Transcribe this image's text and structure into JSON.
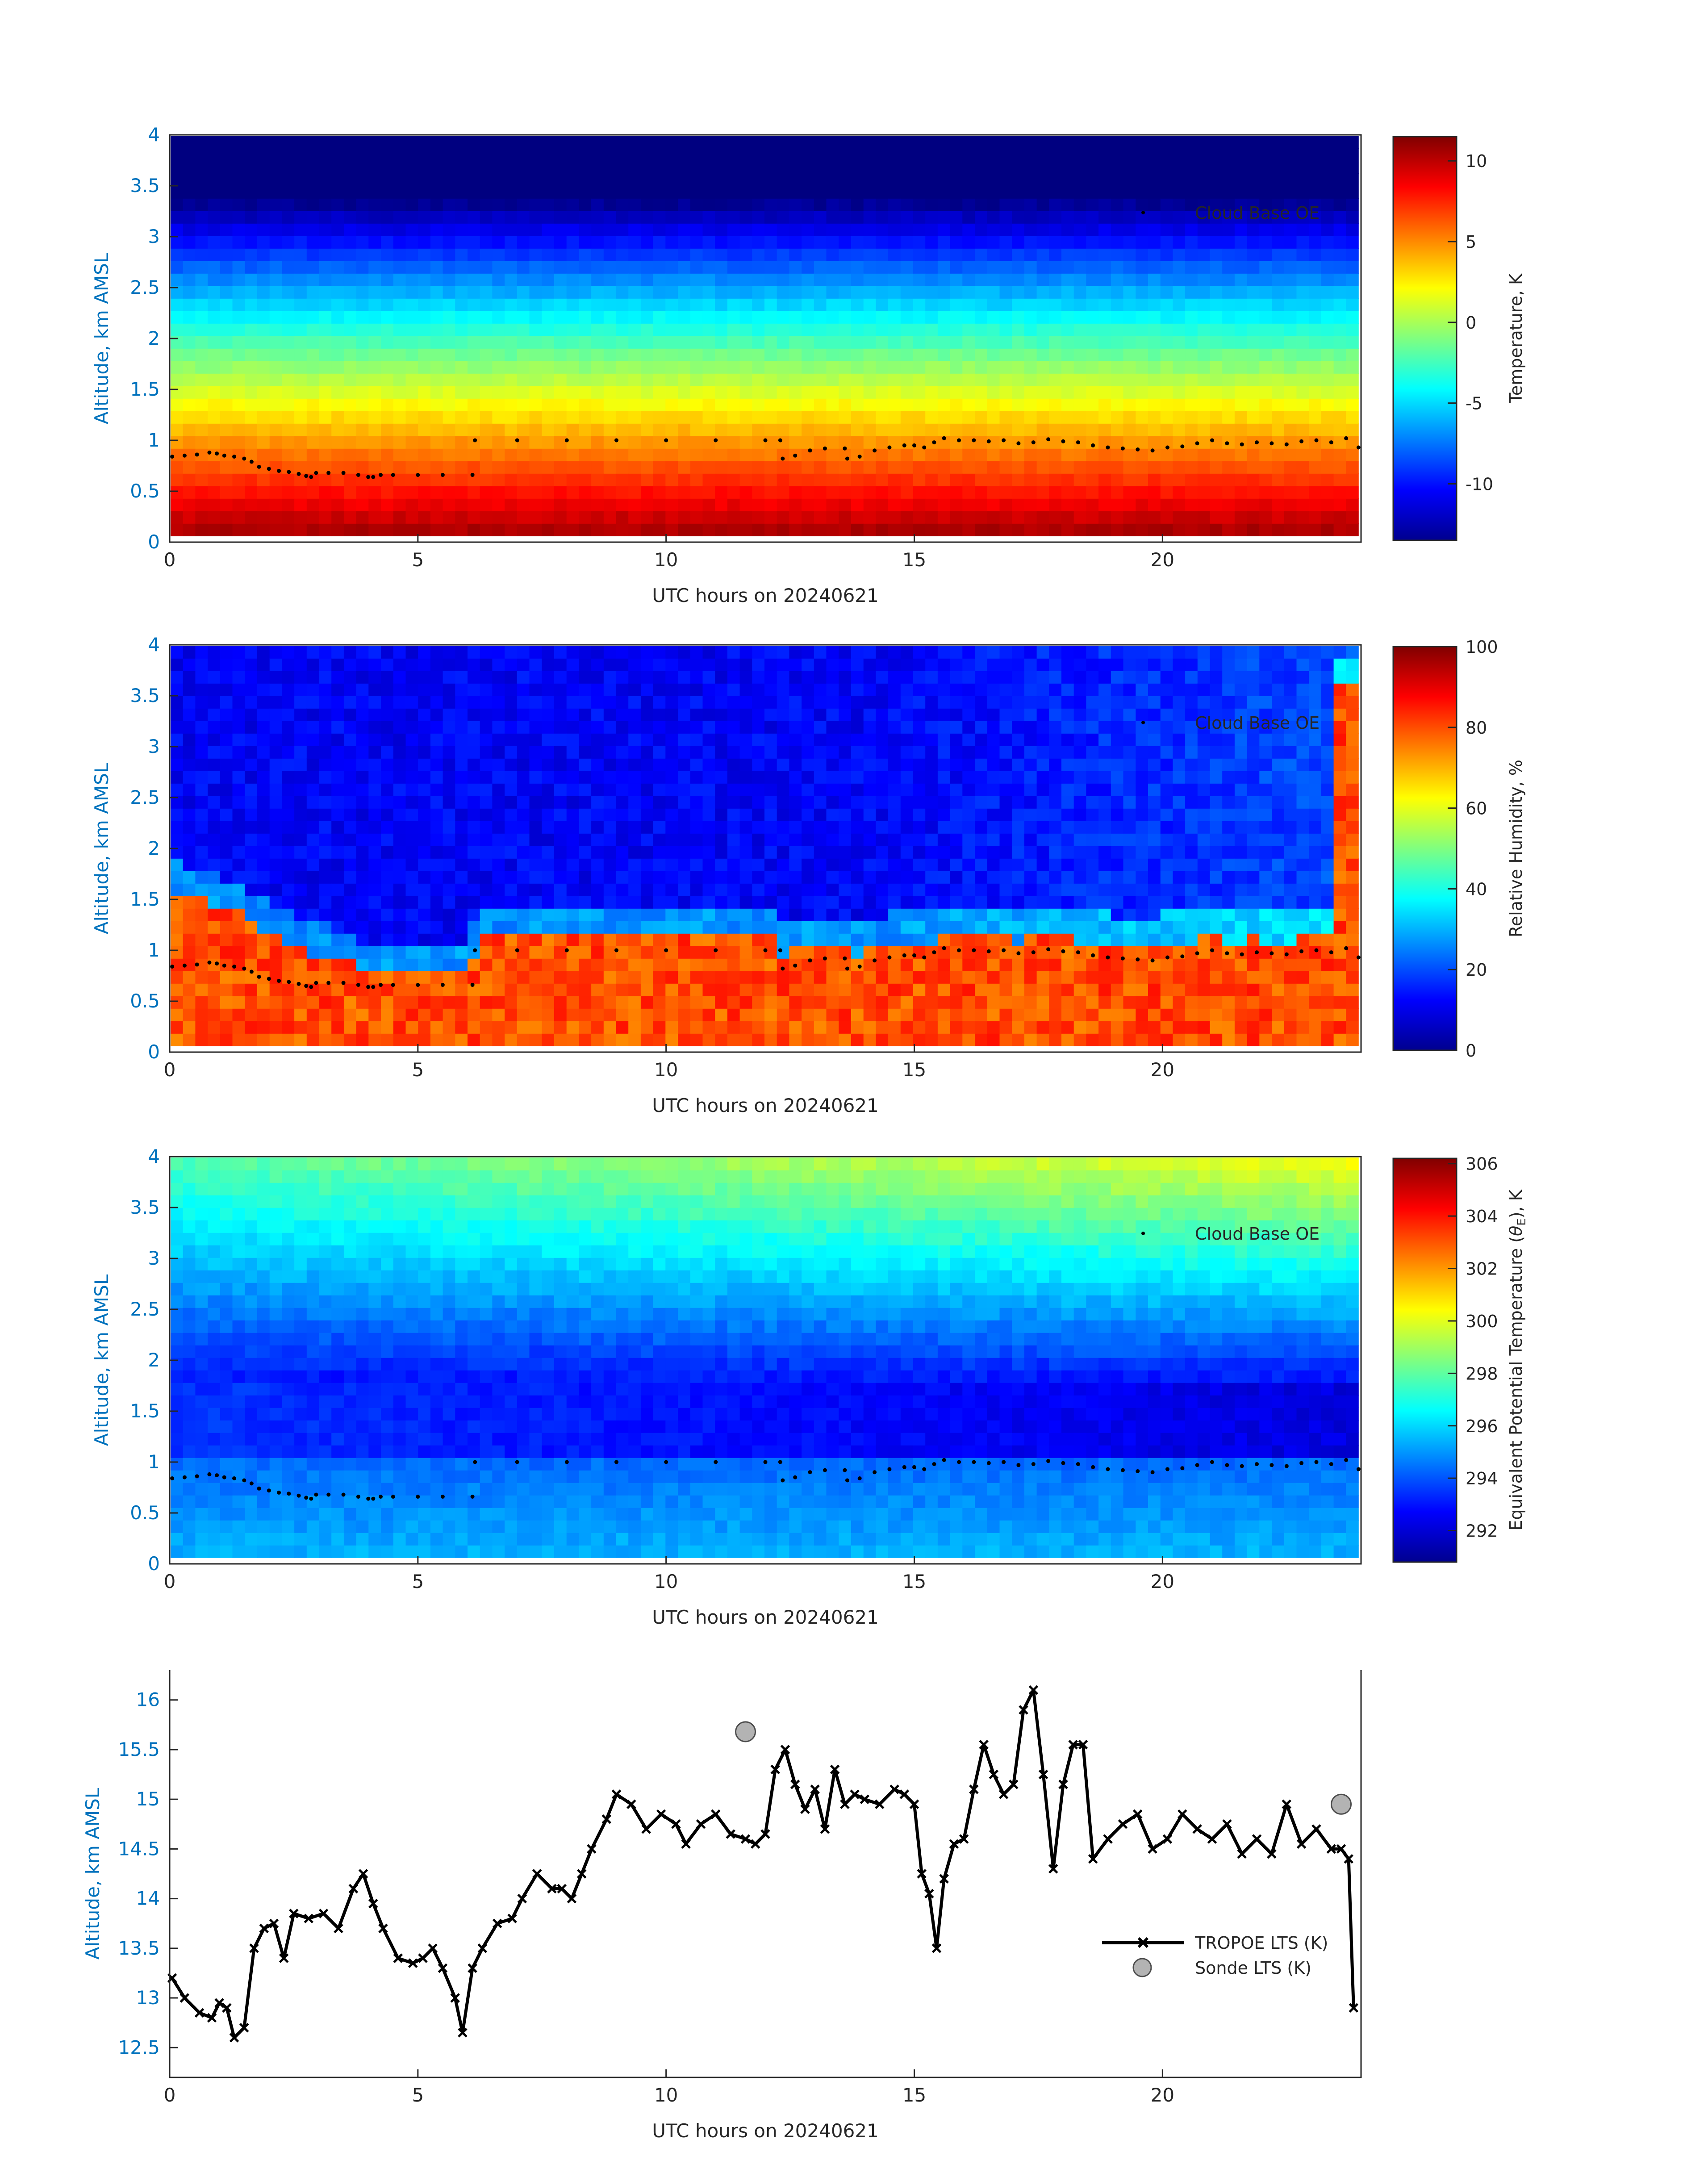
{
  "figure": {
    "date_label": "UTC hours on 20240621"
  },
  "colors": {
    "axis_blue": "#0072BD",
    "cloud_marker": "#000000",
    "sonde_fill": "#B3B3B3",
    "sonde_edge": "#4D4D4D",
    "line": "#000000"
  },
  "chart_data": [
    {
      "type": "heatmap",
      "title": "",
      "xlabel": "UTC hours on 20240621",
      "ylabel": "Altitude, km AMSL",
      "xlim": [
        0,
        24
      ],
      "ylim": [
        0,
        4
      ],
      "xticks": [
        0,
        5,
        10,
        15,
        20
      ],
      "yticks": [
        0,
        0.5,
        1,
        1.5,
        2,
        2.5,
        3,
        3.5,
        4
      ],
      "colorbar": {
        "label": "Temperature, K",
        "range": [
          -13.5,
          11.5
        ],
        "ticks": [
          -10,
          -5,
          0,
          5,
          10
        ],
        "colormap": "jet"
      },
      "field": {
        "description": "temperature decreasing with altitude",
        "surface_value": 11,
        "top_value": -13
      },
      "legend": [
        "Cloud Base OE"
      ],
      "legend_location": "top-right"
    },
    {
      "type": "heatmap",
      "title": "",
      "xlabel": "UTC hours on 20240621",
      "ylabel": "Altitude, km AMSL",
      "xlim": [
        0,
        24
      ],
      "ylim": [
        0,
        4
      ],
      "xticks": [
        0,
        5,
        10,
        15,
        20
      ],
      "yticks": [
        0,
        0.5,
        1,
        1.5,
        2,
        2.5,
        3,
        3.5,
        4
      ],
      "colorbar": {
        "label": "Relative Humidity, %",
        "range": [
          0,
          100
        ],
        "ticks": [
          0,
          20,
          40,
          60,
          80,
          100
        ],
        "colormap": "jet"
      },
      "field": {
        "description": "moist boundary layer below cloud base, dry free troposphere above",
        "boundary_layer_value": 82,
        "free_troposphere_value": 12
      },
      "legend": [
        "Cloud Base OE"
      ],
      "legend_location": "top-right"
    },
    {
      "type": "heatmap",
      "title": "",
      "xlabel": "UTC hours on 20240621",
      "ylabel": "Altitude, km AMSL",
      "xlim": [
        0,
        24
      ],
      "ylim": [
        0,
        4
      ],
      "xticks": [
        0,
        5,
        10,
        15,
        20
      ],
      "yticks": [
        0,
        0.5,
        1,
        1.5,
        2,
        2.5,
        3,
        3.5,
        4
      ],
      "colorbar": {
        "label": "Equivalent Potential Temperature (θE), K",
        "label_prefix": "Equivalent Potential Temperature (",
        "label_theta": "θ",
        "label_sub": "E",
        "label_suffix": "), K",
        "range": [
          290.8,
          306.2
        ],
        "ticks": [
          292,
          294,
          296,
          298,
          300,
          302,
          304,
          306
        ],
        "colormap": "jet"
      },
      "field": {
        "description": "minimum near 1.2-1.8 km, warmer aloft, warmest aloft late in day",
        "surface_value": 295.5,
        "min_value": 292,
        "top_value": 301
      },
      "legend": [
        "Cloud Base OE"
      ],
      "legend_location": "top-right"
    },
    {
      "type": "line",
      "title": "",
      "xlabel": "UTC hours on 20240621",
      "ylabel": "Altitude, km AMSL",
      "xlim": [
        0,
        24
      ],
      "ylim": [
        12.2,
        16.3
      ],
      "xticks": [
        0,
        5,
        10,
        15,
        20
      ],
      "yticks": [
        12.5,
        13,
        13.5,
        14,
        14.5,
        15,
        15.5,
        16
      ],
      "legend": [
        "TROPOE LTS (K)",
        "Sonde LTS (K)"
      ],
      "legend_location": "center-right",
      "series": [
        {
          "name": "TROPOE LTS (K)",
          "x": [
            0.05,
            0.3,
            0.6,
            0.85,
            1.0,
            1.15,
            1.3,
            1.5,
            1.7,
            1.9,
            2.1,
            2.3,
            2.5,
            2.8,
            3.1,
            3.4,
            3.7,
            3.9,
            4.1,
            4.3,
            4.6,
            4.9,
            5.1,
            5.3,
            5.5,
            5.75,
            5.9,
            6.1,
            6.3,
            6.6,
            6.9,
            7.1,
            7.4,
            7.7,
            7.9,
            8.1,
            8.3,
            8.5,
            8.8,
            9.0,
            9.3,
            9.6,
            9.9,
            10.2,
            10.4,
            10.7,
            11.0,
            11.3,
            11.6,
            11.8,
            12.0,
            12.2,
            12.4,
            12.6,
            12.8,
            13.0,
            13.2,
            13.4,
            13.6,
            13.8,
            14.0,
            14.3,
            14.6,
            14.8,
            15.0,
            15.15,
            15.3,
            15.45,
            15.6,
            15.8,
            16.0,
            16.2,
            16.4,
            16.6,
            16.8,
            17.0,
            17.2,
            17.4,
            17.6,
            17.8,
            18.0,
            18.2,
            18.4,
            18.6,
            18.9,
            19.2,
            19.5,
            19.8,
            20.1,
            20.4,
            20.7,
            21.0,
            21.3,
            21.6,
            21.9,
            22.2,
            22.5,
            22.8,
            23.1,
            23.4,
            23.6,
            23.75,
            23.85
          ],
          "values": [
            13.2,
            13.0,
            12.85,
            12.8,
            12.95,
            12.9,
            12.6,
            12.7,
            13.5,
            13.7,
            13.75,
            13.4,
            13.85,
            13.8,
            13.85,
            13.7,
            14.1,
            14.25,
            13.95,
            13.7,
            13.4,
            13.35,
            13.4,
            13.5,
            13.3,
            13.0,
            12.65,
            13.3,
            13.5,
            13.75,
            13.8,
            14.0,
            14.25,
            14.1,
            14.1,
            14.0,
            14.25,
            14.5,
            14.8,
            15.05,
            14.95,
            14.7,
            14.85,
            14.75,
            14.55,
            14.75,
            14.85,
            14.65,
            14.6,
            14.55,
            14.65,
            15.3,
            15.5,
            15.15,
            14.9,
            15.1,
            14.7,
            15.3,
            14.95,
            15.05,
            15.0,
            14.95,
            15.1,
            15.05,
            14.95,
            14.25,
            14.05,
            13.5,
            14.2,
            14.55,
            14.6,
            15.1,
            15.55,
            15.25,
            15.05,
            15.15,
            15.9,
            16.1,
            15.25,
            14.3,
            15.15,
            15.55,
            15.55,
            14.4,
            14.6,
            14.75,
            14.85,
            14.5,
            14.6,
            14.85,
            14.7,
            14.6,
            14.75,
            14.45,
            14.6,
            14.45,
            14.95,
            14.55,
            14.7,
            14.5,
            14.5,
            14.4,
            12.9
          ]
        },
        {
          "name": "Sonde LTS (K)",
          "x": [
            11.6,
            23.6
          ],
          "values": [
            15.68,
            14.95
          ]
        }
      ]
    }
  ],
  "cloud_base_oe": {
    "name": "Cloud Base OE",
    "x": [
      0.05,
      0.3,
      0.55,
      0.8,
      0.95,
      1.1,
      1.3,
      1.5,
      1.65,
      1.8,
      2.0,
      2.2,
      2.4,
      2.6,
      2.75,
      2.85,
      2.95,
      3.2,
      3.5,
      3.8,
      4.0,
      4.1,
      4.25,
      4.5,
      5.0,
      5.5,
      6.1,
      6.15,
      7.0,
      8.0,
      9.0,
      10.0,
      11.0,
      12.0,
      12.3,
      12.35,
      12.6,
      12.9,
      13.2,
      13.6,
      13.65,
      13.9,
      14.2,
      14.5,
      14.8,
      15.0,
      15.2,
      15.4,
      15.6,
      15.9,
      16.2,
      16.5,
      16.8,
      17.1,
      17.4,
      17.7,
      18.0,
      18.3,
      18.6,
      18.9,
      19.2,
      19.5,
      19.8,
      20.1,
      20.4,
      20.7,
      21.0,
      21.3,
      21.6,
      21.9,
      22.2,
      22.5,
      22.8,
      23.1,
      23.4,
      23.7,
      23.95
    ],
    "values": [
      0.84,
      0.85,
      0.86,
      0.88,
      0.87,
      0.85,
      0.84,
      0.82,
      0.79,
      0.74,
      0.72,
      0.7,
      0.69,
      0.67,
      0.65,
      0.64,
      0.68,
      0.68,
      0.68,
      0.66,
      0.64,
      0.64,
      0.66,
      0.66,
      0.66,
      0.66,
      0.66,
      1.0,
      1.0,
      1.0,
      1.0,
      1.0,
      1.0,
      1.0,
      1.0,
      0.82,
      0.85,
      0.9,
      0.92,
      0.92,
      0.82,
      0.84,
      0.9,
      0.93,
      0.95,
      0.95,
      0.93,
      0.98,
      1.02,
      1.0,
      1.0,
      0.99,
      1.0,
      0.97,
      0.98,
      1.01,
      0.99,
      0.98,
      0.95,
      0.93,
      0.92,
      0.91,
      0.9,
      0.93,
      0.94,
      0.97,
      1.0,
      0.97,
      0.96,
      0.98,
      0.97,
      0.96,
      0.99,
      1.0,
      0.98,
      1.02,
      0.93
    ]
  },
  "legends": {
    "cloud_base": "Cloud Base OE",
    "tropoe": "TROPOE LTS (K)",
    "sonde": "Sonde LTS (K)"
  }
}
